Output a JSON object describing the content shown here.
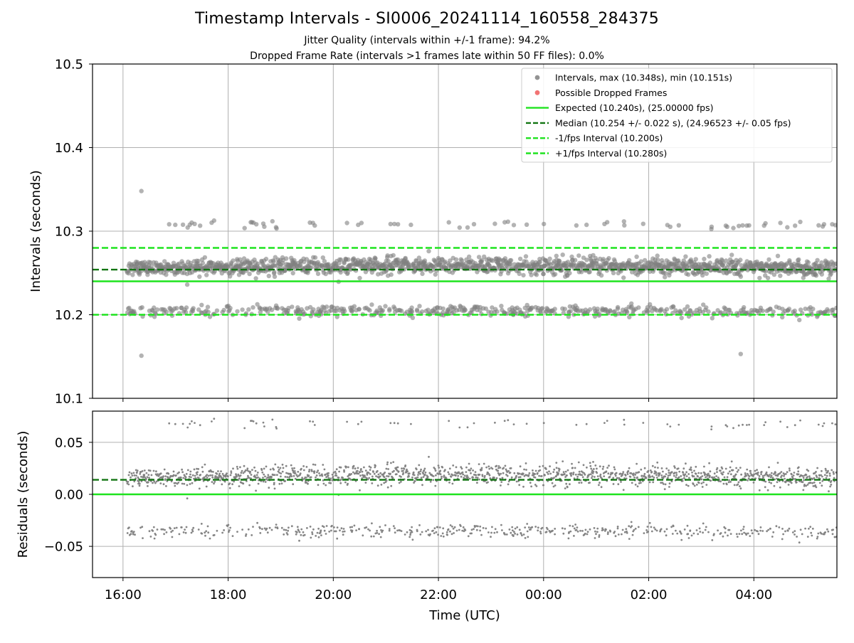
{
  "chart_data": [
    {
      "type": "scatter",
      "title": "Timestamp Intervals - SI0006_20241114_160558_284375",
      "subtitle_lines": [
        "Jitter Quality (intervals within +/-1 frame): 94.2%",
        "Dropped Frame Rate (intervals >1 frames late within 50 FF files): 0.0%"
      ],
      "xlabel": "",
      "ylabel": "Intervals (seconds)",
      "x_ticks": [
        "16:00",
        "18:00",
        "20:00",
        "22:00",
        "00:00",
        "02:00",
        "04:00"
      ],
      "xlim_hours": [
        15.42,
        29.58
      ],
      "ylim": [
        10.1,
        10.5
      ],
      "y_ticks": [
        "10.1",
        "10.2",
        "10.3",
        "10.4",
        "10.5"
      ],
      "grid": true,
      "legend_position": "top-right",
      "series": [
        {
          "name": "Intervals, max (10.348s), min (10.151s)",
          "kind": "scatter",
          "color": "#808080",
          "clusters": [
            {
              "center": 10.256,
              "spread": 0.009,
              "share": 0.72
            },
            {
              "center": 10.203,
              "spread": 0.006,
              "share": 0.24
            },
            {
              "center": 10.307,
              "spread": 0.004,
              "share": 0.04
            }
          ],
          "x_range_hours": [
            16.07,
            29.58
          ],
          "max": 10.348,
          "min": 10.151,
          "n_points": 2100
        },
        {
          "name": "Possible Dropped Frames",
          "kind": "scatter",
          "color": "#f05a5a",
          "values": []
        },
        {
          "name": "Expected (10.240s), (25.00000 fps)",
          "kind": "hline",
          "y": 10.24,
          "color": "#1ee31e",
          "style": "solid"
        },
        {
          "name": "Median (10.254 +/- 0.022 s), (24.96523 +/- 0.05 fps)",
          "kind": "hline",
          "y": 10.254,
          "color": "#127512",
          "style": "dashed"
        },
        {
          "name": "-1/fps Interval (10.200s)",
          "kind": "hline",
          "y": 10.2,
          "color": "#1ee31e",
          "style": "dashed"
        },
        {
          "name": "+1/fps Interval (10.280s)",
          "kind": "hline",
          "y": 10.28,
          "color": "#1ee31e",
          "style": "dashed"
        }
      ]
    },
    {
      "type": "scatter",
      "xlabel": "Time (UTC)",
      "ylabel": "Residuals (seconds)",
      "x_ticks": [
        "16:00",
        "18:00",
        "20:00",
        "22:00",
        "00:00",
        "02:00",
        "04:00"
      ],
      "xlim_hours": [
        15.42,
        29.58
      ],
      "ylim": [
        -0.08,
        0.08
      ],
      "y_ticks": [
        "−0.05",
        "0.00",
        "0.05"
      ],
      "y_tick_values": [
        -0.05,
        0.0,
        0.05
      ],
      "grid": true,
      "series": [
        {
          "kind": "scatter",
          "color": "#808080",
          "clusters": [
            {
              "center": 0.016,
              "spread": 0.009,
              "share": 0.72
            },
            {
              "center": -0.037,
              "spread": 0.006,
              "share": 0.24
            },
            {
              "center": 0.067,
              "spread": 0.004,
              "share": 0.04
            }
          ],
          "x_range_hours": [
            16.07,
            29.58
          ],
          "n_points": 2100
        },
        {
          "kind": "hline",
          "y": 0.0,
          "color": "#1ee31e",
          "style": "solid"
        },
        {
          "kind": "hline",
          "y": 0.014,
          "color": "#127512",
          "style": "dashed"
        }
      ]
    }
  ]
}
